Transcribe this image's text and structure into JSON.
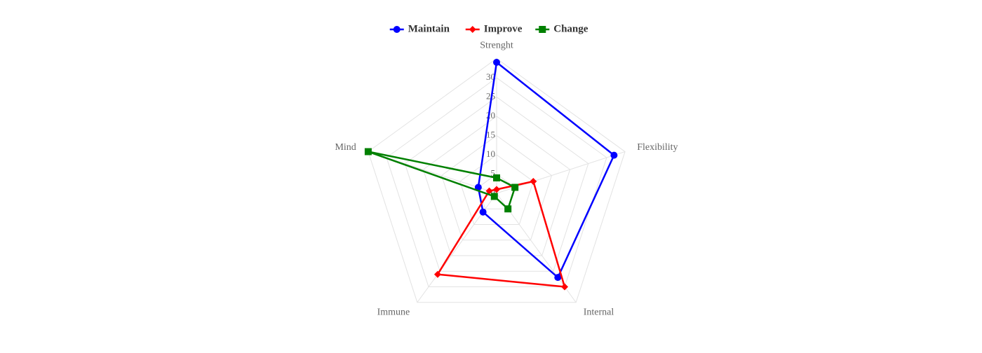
{
  "chart_data": {
    "type": "radar",
    "categories": [
      "Strenght",
      "Flexibility",
      "Internal",
      "Immune",
      "Mind"
    ],
    "series": [
      {
        "name": "Maintain",
        "color": "#0000ff",
        "marker": "circle",
        "values": [
          34,
          32,
          27,
          6,
          5
        ]
      },
      {
        "name": "Improve",
        "color": "#ff0000",
        "marker": "diamond",
        "values": [
          1,
          10,
          30,
          26,
          2
        ]
      },
      {
        "name": "Change",
        "color": "#008000",
        "marker": "square",
        "values": [
          4,
          5,
          5,
          1,
          35
        ]
      }
    ],
    "ylim": [
      0,
      35
    ],
    "yticks": [
      0,
      5,
      10,
      15,
      20,
      25,
      30
    ],
    "rings": [
      5,
      10,
      15,
      20,
      25,
      30,
      35
    ],
    "grid": true,
    "legend": "top"
  }
}
